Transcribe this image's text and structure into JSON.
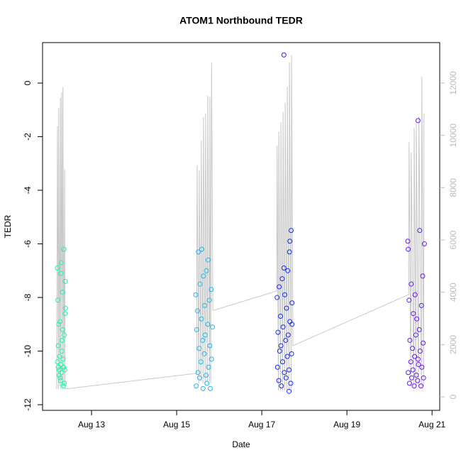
{
  "chart_data": {
    "type": "scatter",
    "title": "ATOM1 Northbound TEDR",
    "x_label": "Date",
    "y_label": "TEDR",
    "xlim": [
      11.85,
      21.18
    ],
    "xticks": [
      {
        "value": 13,
        "label": "Aug 13"
      },
      {
        "value": 15,
        "label": "Aug 15"
      },
      {
        "value": 17,
        "label": "Aug 17"
      },
      {
        "value": 19,
        "label": "Aug 19"
      },
      {
        "value": 21,
        "label": "Aug 21"
      }
    ],
    "ylim": [
      -12.21,
      1.51
    ],
    "yticks": [
      0,
      -2,
      -4,
      -6,
      -8,
      -10,
      -12
    ],
    "y2lim": [
      -516,
      13548
    ],
    "y2ticks": [
      0,
      2000,
      4000,
      6000,
      8000,
      10000,
      12000
    ],
    "series": [
      {
        "type": "line",
        "axis": "y2",
        "color": "#c8c8c8",
        "x": [
          12.18,
          12.2,
          12.22,
          12.23,
          12.25,
          12.27,
          12.28,
          12.3,
          12.32,
          12.33,
          12.35,
          12.37,
          12.38,
          15.47,
          15.48,
          15.52,
          15.53,
          15.57,
          15.58,
          15.62,
          15.63,
          15.67,
          15.68,
          15.72,
          15.73,
          15.77,
          15.78,
          15.8,
          15.82,
          15.85,
          17.35,
          17.36,
          17.39,
          17.4,
          17.44,
          17.45,
          17.49,
          17.5,
          17.54,
          17.55,
          17.59,
          17.6,
          17.64,
          17.65,
          17.69,
          17.7,
          17.73,
          20.45,
          20.46,
          20.5,
          20.51,
          20.57,
          20.58,
          20.62,
          20.63,
          20.68,
          20.69,
          20.75,
          20.76,
          20.8,
          20.81
        ],
        "values": [
          300,
          10350,
          300,
          11050,
          400,
          11450,
          300,
          11650,
          300,
          11850,
          400,
          8700,
          300,
          900,
          8850,
          500,
          8660,
          600,
          9800,
          500,
          10700,
          450,
          10830,
          500,
          11510,
          600,
          11460,
          500,
          12790,
          3300,
          4046,
          9610,
          250,
          10150,
          250,
          10500,
          250,
          10890,
          250,
          11240,
          250,
          11860,
          250,
          12790,
          250,
          13060,
          1955,
          3910,
          9750,
          400,
          9340,
          400,
          10290,
          400,
          10430,
          400,
          10700,
          400,
          12250,
          400,
          10830
        ]
      },
      {
        "type": "scatter",
        "color": "#1DF5A6",
        "x": [
          12.2,
          12.21,
          12.22,
          12.23,
          12.24,
          12.25,
          12.26,
          12.27,
          12.28,
          12.29,
          12.3,
          12.31,
          12.32,
          12.33,
          12.34,
          12.35,
          12.36,
          12.37,
          12.38,
          12.39,
          12.2,
          12.22,
          12.24,
          12.26,
          12.28,
          12.3,
          12.32,
          12.34,
          12.36,
          12.38
        ],
        "values": [
          -6.9,
          -8.1,
          -10.6,
          -9.0,
          -10.9,
          -10.2,
          -8.9,
          -11.1,
          -10.5,
          -6.7,
          -10.8,
          -9.6,
          -7.8,
          -10.3,
          -11.3,
          -6.2,
          -9.4,
          -10.7,
          -7.4,
          -8.4,
          -10.4,
          -9.8,
          -10.7,
          -11.0,
          -7.1,
          -10.0,
          -9.2,
          -10.6,
          -11.2,
          -8.6
        ]
      },
      {
        "type": "scatter",
        "color": "#1FB5EE",
        "x": [
          15.45,
          15.46,
          15.47,
          15.49,
          15.5,
          15.51,
          15.53,
          15.54,
          15.55,
          15.57,
          15.58,
          15.59,
          15.61,
          15.62,
          15.63,
          15.65,
          15.66,
          15.67,
          15.69,
          15.7,
          15.71,
          15.73,
          15.74,
          15.75,
          15.77,
          15.78,
          15.79,
          15.81,
          15.82,
          15.84
        ],
        "values": [
          -7.9,
          -11.3,
          -9.2,
          -8.5,
          -10.8,
          -6.3,
          -9.9,
          -11.0,
          -7.5,
          -10.4,
          -8.8,
          -6.2,
          -9.6,
          -11.4,
          -7.2,
          -10.1,
          -8.3,
          -9.4,
          -10.9,
          -7.0,
          -11.2,
          -9.0,
          -6.6,
          -10.6,
          -8.1,
          -9.8,
          -11.4,
          -7.7,
          -10.3,
          -9.1
        ]
      },
      {
        "type": "scatter",
        "color": "#1A2BF2",
        "x": [
          17.36,
          17.37,
          17.38,
          17.4,
          17.41,
          17.42,
          17.44,
          17.45,
          17.46,
          17.48,
          17.49,
          17.5,
          17.52,
          17.53,
          17.54,
          17.56,
          17.57,
          17.58,
          17.6,
          17.61,
          17.62,
          17.64,
          17.65,
          17.66,
          17.68,
          17.69,
          17.7,
          17.71,
          17.52,
          17.66,
          17.64,
          17.71
        ],
        "values": [
          -8.0,
          -10.6,
          -9.3,
          -11.1,
          -7.6,
          -10.0,
          -8.7,
          -9.8,
          -11.3,
          -7.3,
          -10.4,
          -9.1,
          1.05,
          -10.8,
          -7.9,
          -9.6,
          -11.0,
          -8.4,
          -10.2,
          -7.0,
          -9.4,
          -10.7,
          -6.3,
          -8.9,
          -11.2,
          -5.5,
          -10.1,
          -9.0,
          -6.9,
          -5.9,
          -11.5,
          -8.2
        ]
      },
      {
        "type": "scatter",
        "color": "#6A1AEE",
        "x": [
          20.43,
          20.44,
          20.46,
          20.47,
          20.48,
          20.5,
          20.51,
          20.52,
          20.54,
          20.55,
          20.56,
          20.58,
          20.59,
          20.6,
          20.62,
          20.63,
          20.64,
          20.66,
          20.67,
          20.68,
          20.7,
          20.71,
          20.72,
          20.74,
          20.75,
          20.76,
          20.78,
          20.79,
          20.8,
          20.82,
          20.44,
          20.67
        ],
        "values": [
          -5.9,
          -10.8,
          -8.1,
          -11.2,
          -9.6,
          -10.4,
          -7.5,
          -11.0,
          -9.9,
          -10.7,
          -8.6,
          -11.3,
          -10.2,
          -7.9,
          -9.4,
          -10.9,
          -8.8,
          -11.1,
          -1.4,
          -10.5,
          -9.2,
          -5.5,
          -10.0,
          -11.3,
          -8.3,
          -10.6,
          -7.2,
          -9.7,
          -11.0,
          -6.0,
          -6.2,
          -10.3
        ]
      }
    ]
  }
}
